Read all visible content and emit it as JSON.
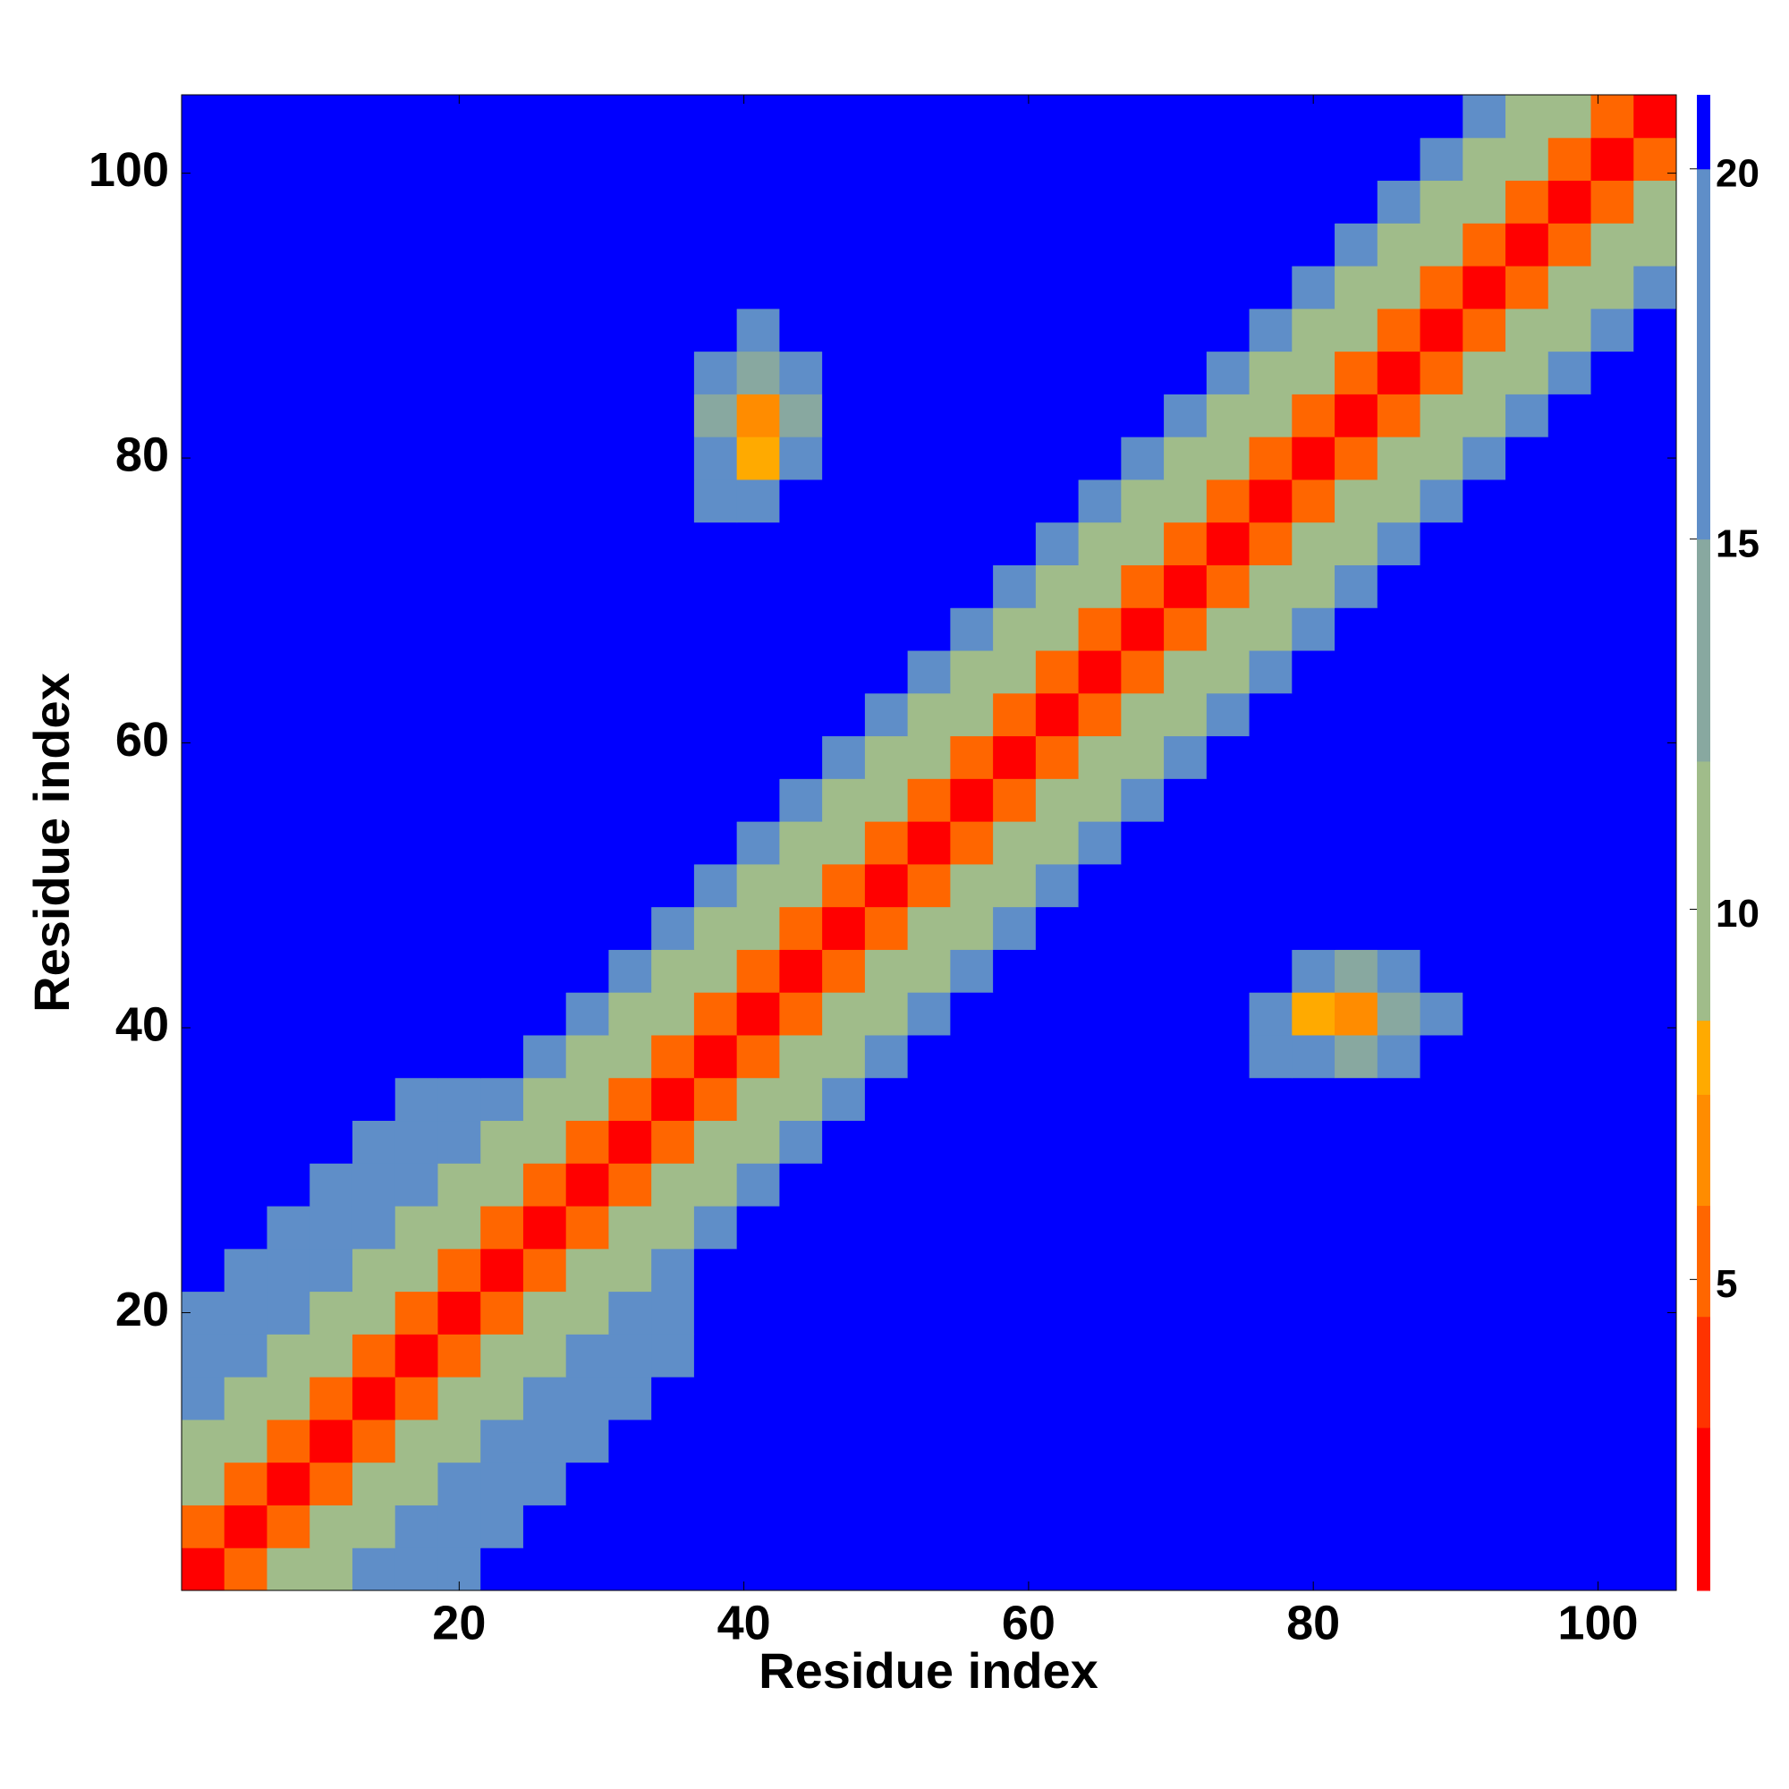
{
  "chart_data": {
    "type": "heatmap",
    "x_label": "Residue index",
    "y_label": "Residue index",
    "xlim": [
      0.5,
      105.5
    ],
    "ylim": [
      0.5,
      105.5
    ],
    "xticks": [
      20,
      40,
      60,
      80,
      100
    ],
    "yticks": [
      20,
      40,
      60,
      80,
      100
    ],
    "x": [
      2,
      5,
      8,
      11,
      14,
      17,
      20,
      23,
      26,
      29,
      32,
      35,
      38,
      41,
      44,
      47,
      50,
      53,
      56,
      59,
      62,
      65,
      68,
      71,
      74,
      77,
      80,
      83,
      86,
      89,
      92,
      95,
      98,
      101,
      104
    ],
    "y": [
      2,
      5,
      8,
      11,
      14,
      17,
      20,
      23,
      26,
      29,
      32,
      35,
      38,
      41,
      44,
      47,
      50,
      53,
      56,
      59,
      62,
      65,
      68,
      71,
      74,
      77,
      80,
      83,
      86,
      89,
      92,
      95,
      98,
      101,
      104
    ],
    "colorbar": {
      "zlim": [
        0.8,
        21
      ],
      "ticks": [
        5,
        10,
        15,
        20
      ],
      "bounds": [
        0.8,
        3,
        4.5,
        6,
        7.5,
        8.5,
        12,
        15,
        20,
        21
      ],
      "colors": [
        "#ff0000",
        "#ff3300",
        "#ff6600",
        "#ff8c00",
        "#ffaa00",
        "#a0bc8a",
        "#88a8a0",
        "#5f8ec8",
        "#0000ff"
      ]
    },
    "z": [
      [
        2,
        5,
        9,
        11,
        16,
        15,
        17,
        21,
        21,
        21,
        21,
        21,
        21,
        21,
        21,
        21,
        21,
        21,
        21,
        21,
        21,
        21,
        21,
        21,
        21,
        21,
        21,
        21,
        21,
        21,
        21,
        21,
        21,
        21,
        21
      ],
      [
        5,
        2,
        5,
        9,
        11,
        16,
        15,
        17,
        21,
        21,
        21,
        21,
        21,
        21,
        21,
        21,
        21,
        21,
        21,
        21,
        21,
        21,
        21,
        21,
        21,
        21,
        21,
        21,
        21,
        21,
        21,
        21,
        21,
        21,
        21
      ],
      [
        9,
        5,
        2,
        5,
        9,
        11,
        16,
        15,
        17,
        21,
        21,
        21,
        21,
        21,
        21,
        21,
        21,
        21,
        21,
        21,
        21,
        21,
        21,
        21,
        21,
        21,
        21,
        21,
        21,
        21,
        21,
        21,
        21,
        21,
        21
      ],
      [
        11,
        9,
        5,
        2,
        5,
        9,
        11,
        16,
        15,
        17,
        21,
        21,
        21,
        21,
        21,
        21,
        21,
        21,
        21,
        21,
        21,
        21,
        21,
        21,
        21,
        21,
        21,
        21,
        21,
        21,
        21,
        21,
        21,
        21,
        21
      ],
      [
        16,
        11,
        9,
        5,
        2,
        5,
        9,
        11,
        16,
        15,
        17,
        21,
        21,
        21,
        21,
        21,
        21,
        21,
        21,
        21,
        21,
        21,
        21,
        21,
        21,
        21,
        21,
        21,
        21,
        21,
        21,
        21,
        21,
        21,
        21
      ],
      [
        15,
        16,
        11,
        9,
        5,
        2,
        5,
        9,
        11,
        16,
        15,
        17,
        21,
        21,
        21,
        21,
        21,
        21,
        21,
        21,
        21,
        21,
        21,
        21,
        21,
        21,
        21,
        21,
        21,
        21,
        21,
        21,
        21,
        21,
        21
      ],
      [
        17,
        15,
        16,
        11,
        9,
        5,
        2,
        5,
        9,
        11,
        16,
        15,
        21,
        21,
        21,
        21,
        21,
        21,
        21,
        21,
        21,
        21,
        21,
        21,
        21,
        21,
        21,
        21,
        21,
        21,
        21,
        21,
        21,
        21,
        21
      ],
      [
        21,
        17,
        15,
        16,
        11,
        9,
        5,
        2,
        5,
        9,
        11,
        16,
        21,
        21,
        21,
        21,
        21,
        21,
        21,
        21,
        21,
        21,
        21,
        21,
        21,
        21,
        21,
        21,
        21,
        21,
        21,
        21,
        21,
        21,
        21
      ],
      [
        21,
        21,
        17,
        15,
        16,
        11,
        9,
        5,
        2,
        5,
        9,
        11,
        16,
        21,
        21,
        21,
        21,
        21,
        21,
        21,
        21,
        21,
        21,
        21,
        21,
        21,
        21,
        21,
        21,
        21,
        21,
        21,
        21,
        21,
        21
      ],
      [
        21,
        21,
        21,
        17,
        15,
        16,
        11,
        9,
        5,
        2,
        5,
        9,
        11,
        16,
        21,
        21,
        21,
        21,
        21,
        21,
        21,
        21,
        21,
        21,
        21,
        21,
        21,
        21,
        21,
        21,
        21,
        21,
        21,
        21,
        21
      ],
      [
        21,
        21,
        21,
        21,
        17,
        15,
        16,
        11,
        9,
        5,
        2,
        5,
        9,
        11,
        16,
        21,
        21,
        21,
        21,
        21,
        21,
        21,
        21,
        21,
        21,
        21,
        21,
        21,
        21,
        21,
        21,
        21,
        21,
        21,
        21
      ],
      [
        21,
        21,
        21,
        21,
        21,
        17,
        15,
        16,
        11,
        9,
        5,
        2,
        5,
        9,
        11,
        16,
        21,
        21,
        21,
        21,
        21,
        21,
        21,
        21,
        21,
        21,
        21,
        21,
        21,
        21,
        21,
        21,
        21,
        21,
        21
      ],
      [
        21,
        21,
        21,
        21,
        21,
        21,
        21,
        21,
        16,
        11,
        9,
        5,
        2,
        5,
        9,
        11,
        16,
        21,
        21,
        21,
        21,
        21,
        21,
        21,
        21,
        17,
        15,
        14,
        16,
        21,
        21,
        21,
        21,
        21,
        21
      ],
      [
        21,
        21,
        21,
        21,
        21,
        21,
        21,
        21,
        21,
        16,
        11,
        9,
        5,
        2,
        5,
        9,
        11,
        16,
        21,
        21,
        21,
        21,
        21,
        21,
        21,
        16,
        8,
        6,
        14,
        17,
        21,
        21,
        21,
        21,
        21
      ],
      [
        21,
        21,
        21,
        21,
        21,
        21,
        21,
        21,
        21,
        21,
        16,
        11,
        9,
        5,
        2,
        5,
        9,
        11,
        16,
        21,
        21,
        21,
        21,
        21,
        21,
        21,
        16,
        13,
        15,
        21,
        21,
        21,
        21,
        21,
        21
      ],
      [
        21,
        21,
        21,
        21,
        21,
        21,
        21,
        21,
        21,
        21,
        21,
        16,
        11,
        9,
        5,
        2,
        5,
        9,
        11,
        16,
        21,
        21,
        21,
        21,
        21,
        21,
        21,
        21,
        21,
        21,
        21,
        21,
        21,
        21,
        21
      ],
      [
        21,
        21,
        21,
        21,
        21,
        21,
        21,
        21,
        21,
        21,
        21,
        21,
        16,
        11,
        9,
        5,
        2,
        5,
        9,
        11,
        16,
        21,
        21,
        21,
        21,
        21,
        21,
        21,
        21,
        21,
        21,
        21,
        21,
        21,
        21
      ],
      [
        21,
        21,
        21,
        21,
        21,
        21,
        21,
        21,
        21,
        21,
        21,
        21,
        21,
        16,
        11,
        9,
        5,
        2,
        5,
        9,
        11,
        16,
        21,
        21,
        21,
        21,
        21,
        21,
        21,
        21,
        21,
        21,
        21,
        21,
        21
      ],
      [
        21,
        21,
        21,
        21,
        21,
        21,
        21,
        21,
        21,
        21,
        21,
        21,
        21,
        21,
        16,
        11,
        9,
        5,
        2,
        5,
        9,
        11,
        16,
        21,
        21,
        21,
        21,
        21,
        21,
        21,
        21,
        21,
        21,
        21,
        21
      ],
      [
        21,
        21,
        21,
        21,
        21,
        21,
        21,
        21,
        21,
        21,
        21,
        21,
        21,
        21,
        21,
        16,
        11,
        9,
        5,
        2,
        5,
        9,
        11,
        16,
        21,
        21,
        21,
        21,
        21,
        21,
        21,
        21,
        21,
        21,
        21
      ],
      [
        21,
        21,
        21,
        21,
        21,
        21,
        21,
        21,
        21,
        21,
        21,
        21,
        21,
        21,
        21,
        21,
        16,
        11,
        9,
        5,
        2,
        5,
        9,
        11,
        16,
        21,
        21,
        21,
        21,
        21,
        21,
        21,
        21,
        21,
        21
      ],
      [
        21,
        21,
        21,
        21,
        21,
        21,
        21,
        21,
        21,
        21,
        21,
        21,
        21,
        21,
        21,
        21,
        21,
        16,
        11,
        9,
        5,
        2,
        5,
        9,
        11,
        16,
        21,
        21,
        21,
        21,
        21,
        21,
        21,
        21,
        21
      ],
      [
        21,
        21,
        21,
        21,
        21,
        21,
        21,
        21,
        21,
        21,
        21,
        21,
        21,
        21,
        21,
        21,
        21,
        21,
        16,
        11,
        9,
        5,
        2,
        5,
        9,
        11,
        16,
        21,
        21,
        21,
        21,
        21,
        21,
        21,
        21
      ],
      [
        21,
        21,
        21,
        21,
        21,
        21,
        21,
        21,
        21,
        21,
        21,
        21,
        21,
        21,
        21,
        21,
        21,
        21,
        21,
        16,
        11,
        9,
        5,
        2,
        5,
        9,
        11,
        16,
        21,
        21,
        21,
        21,
        21,
        21,
        21
      ],
      [
        21,
        21,
        21,
        21,
        21,
        21,
        21,
        21,
        21,
        21,
        21,
        21,
        21,
        21,
        21,
        21,
        21,
        21,
        21,
        21,
        16,
        11,
        9,
        5,
        2,
        5,
        9,
        11,
        16,
        21,
        21,
        21,
        21,
        21,
        21
      ],
      [
        21,
        21,
        21,
        21,
        21,
        21,
        21,
        21,
        21,
        21,
        21,
        21,
        17,
        16,
        21,
        21,
        21,
        21,
        21,
        21,
        21,
        16,
        11,
        9,
        5,
        2,
        5,
        9,
        11,
        16,
        21,
        21,
        21,
        21,
        21
      ],
      [
        21,
        21,
        21,
        21,
        21,
        21,
        21,
        21,
        21,
        21,
        21,
        21,
        15,
        8,
        16,
        21,
        21,
        21,
        21,
        21,
        21,
        21,
        16,
        11,
        9,
        5,
        2,
        5,
        9,
        11,
        16,
        21,
        21,
        21,
        21
      ],
      [
        21,
        21,
        21,
        21,
        21,
        21,
        21,
        21,
        21,
        21,
        21,
        21,
        14,
        6,
        13,
        21,
        21,
        21,
        21,
        21,
        21,
        21,
        21,
        16,
        11,
        9,
        5,
        2,
        5,
        9,
        11,
        16,
        21,
        21,
        21
      ],
      [
        21,
        21,
        21,
        21,
        21,
        21,
        21,
        21,
        21,
        21,
        21,
        21,
        16,
        14,
        15,
        21,
        21,
        21,
        21,
        21,
        21,
        21,
        21,
        21,
        16,
        11,
        9,
        5,
        2,
        5,
        9,
        11,
        16,
        21,
        21
      ],
      [
        21,
        21,
        21,
        21,
        21,
        21,
        21,
        21,
        21,
        21,
        21,
        21,
        21,
        17,
        21,
        21,
        21,
        21,
        21,
        21,
        21,
        21,
        21,
        21,
        21,
        16,
        11,
        9,
        5,
        2,
        5,
        9,
        11,
        16,
        21
      ],
      [
        21,
        21,
        21,
        21,
        21,
        21,
        21,
        21,
        21,
        21,
        21,
        21,
        21,
        21,
        21,
        21,
        21,
        21,
        21,
        21,
        21,
        21,
        21,
        21,
        21,
        21,
        16,
        11,
        9,
        5,
        2,
        5,
        9,
        11,
        16
      ],
      [
        21,
        21,
        21,
        21,
        21,
        21,
        21,
        21,
        21,
        21,
        21,
        21,
        21,
        21,
        21,
        21,
        21,
        21,
        21,
        21,
        21,
        21,
        21,
        21,
        21,
        21,
        21,
        16,
        11,
        9,
        5,
        2,
        5,
        9,
        11
      ],
      [
        21,
        21,
        21,
        21,
        21,
        21,
        21,
        21,
        21,
        21,
        21,
        21,
        21,
        21,
        21,
        21,
        21,
        21,
        21,
        21,
        21,
        21,
        21,
        21,
        21,
        21,
        21,
        21,
        16,
        11,
        9,
        5,
        2,
        5,
        9
      ],
      [
        21,
        21,
        21,
        21,
        21,
        21,
        21,
        21,
        21,
        21,
        21,
        21,
        21,
        21,
        21,
        21,
        21,
        21,
        21,
        21,
        21,
        21,
        21,
        21,
        21,
        21,
        21,
        21,
        21,
        16,
        11,
        9,
        5,
        2,
        5
      ],
      [
        21,
        21,
        21,
        21,
        21,
        21,
        21,
        21,
        21,
        21,
        21,
        21,
        21,
        21,
        21,
        21,
        21,
        21,
        21,
        21,
        21,
        21,
        21,
        21,
        21,
        21,
        21,
        21,
        21,
        21,
        16,
        11,
        9,
        5,
        2
      ]
    ]
  }
}
